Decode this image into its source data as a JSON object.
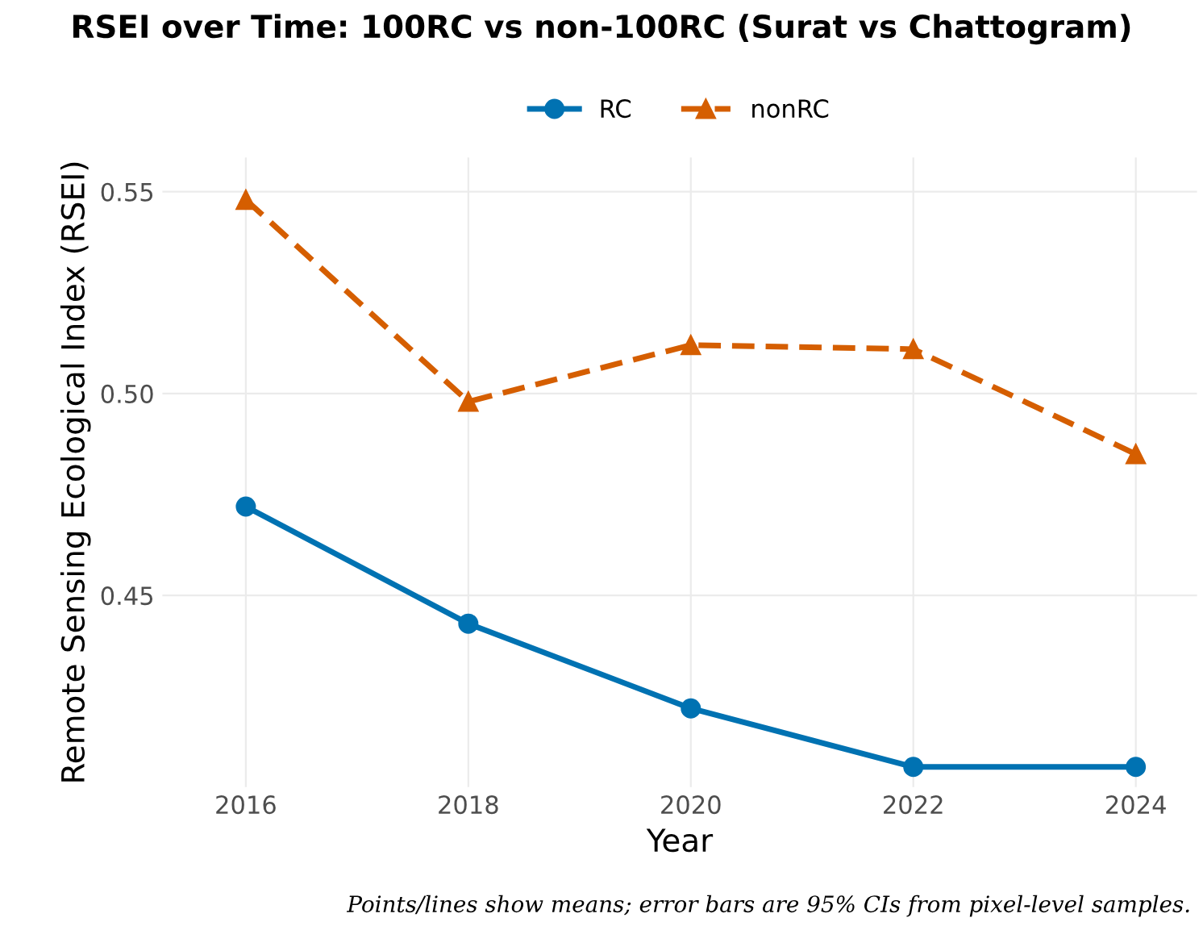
{
  "chart_data": {
    "type": "line",
    "title": "RSEI over Time: 100RC vs non-100RC (Surat vs Chattogram)",
    "xlabel": "Year",
    "ylabel": "Remote Sensing Ecological Index (RSEI)",
    "x": [
      2016,
      2018,
      2020,
      2022,
      2024
    ],
    "series": [
      {
        "name": "RC",
        "color": "#0072b2",
        "values": [
          0.472,
          0.443,
          0.422,
          0.4075,
          0.4075
        ],
        "marker": "circle",
        "line_style": "solid"
      },
      {
        "name": "nonRC",
        "color": "#d55e00",
        "values": [
          0.548,
          0.498,
          0.512,
          0.511,
          0.485
        ],
        "marker": "triangle",
        "line_style": "dashed"
      }
    ],
    "xlim": [
      2015.25,
      2024.55
    ],
    "ylim": [
      0.4025,
      0.5585
    ],
    "xticks": [
      2016,
      2018,
      2020,
      2022,
      2024
    ],
    "yticks": [
      0.45,
      {
        "value": 0.5,
        "label": "0.50"
      },
      0.55
    ],
    "grid": true,
    "legend": "top",
    "annotations": [
      "Points/lines show means; error bars are 95% CIs from pixel-level samples."
    ]
  }
}
